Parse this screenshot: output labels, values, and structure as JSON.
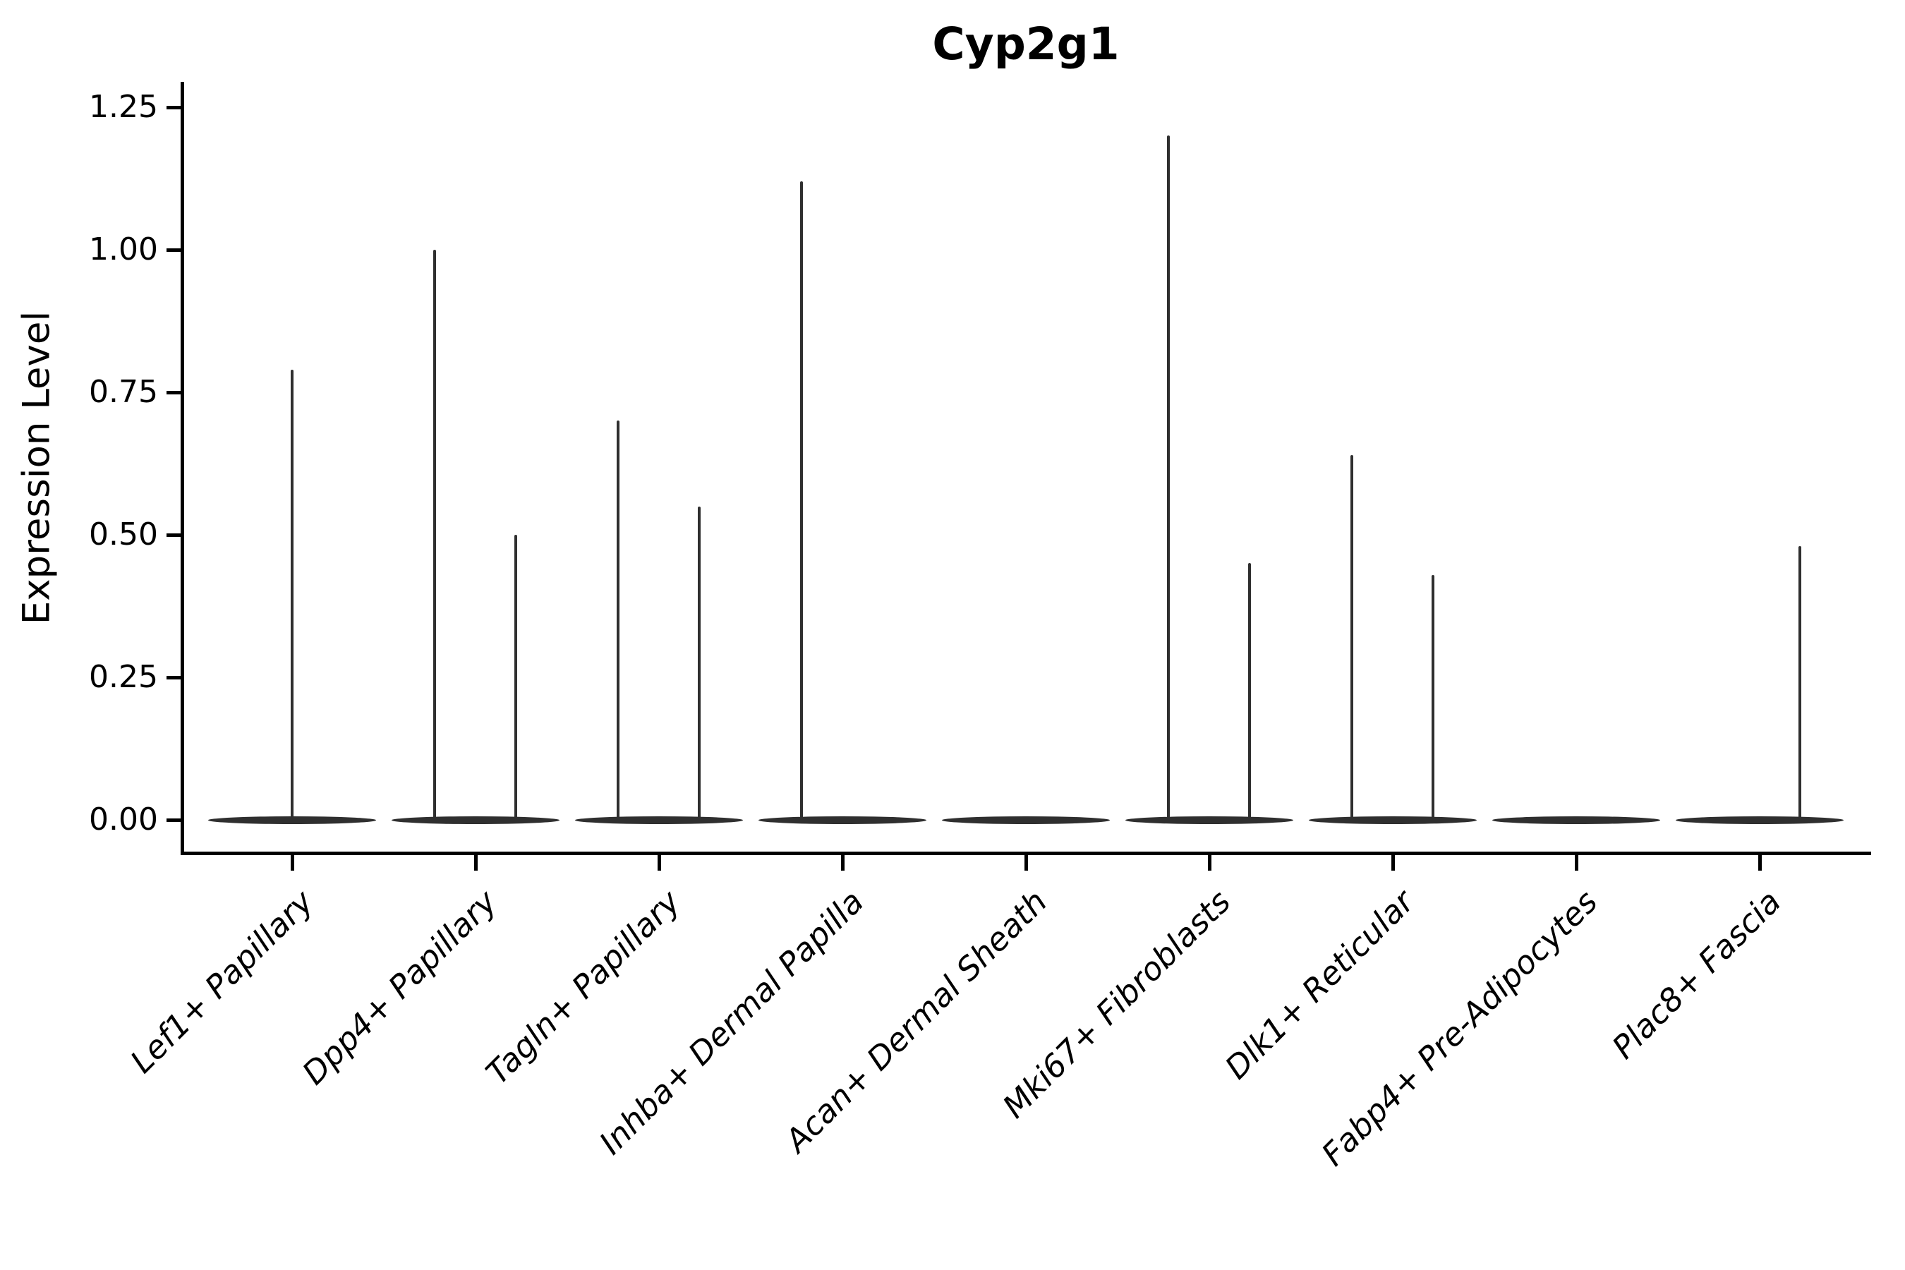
{
  "figure": {
    "background": "#ffffff"
  },
  "chart_data": {
    "type": "violin",
    "title": "Cyp2g1",
    "ylabel": "Expression Level",
    "xlabel": "",
    "ylim": [
      0,
      1.25
    ],
    "yticks": [
      0.0,
      0.25,
      0.5,
      0.75,
      1.0,
      1.25
    ],
    "ytick_labels": [
      "0.00",
      "0.25",
      "0.50",
      "0.75",
      "1.00",
      "1.25"
    ],
    "grid": false,
    "legend": "none",
    "violin_color": "#2f2f2f",
    "axis_color": "#000000",
    "text_color": "#000000",
    "x_label_rotation_deg": 45,
    "categories": [
      {
        "label": "Lef1+ Papillary",
        "spikes": [
          {
            "position": "center",
            "value": 0.79
          }
        ]
      },
      {
        "label": "Dpp4+ Papillary",
        "spikes": [
          {
            "position": "left",
            "value": 1.0
          },
          {
            "position": "right",
            "value": 0.5
          }
        ]
      },
      {
        "label": "Tagln+ Papillary",
        "spikes": [
          {
            "position": "left",
            "value": 0.7
          },
          {
            "position": "right",
            "value": 0.55
          }
        ]
      },
      {
        "label": "Inhba+ Dermal Papilla",
        "spikes": [
          {
            "position": "left",
            "value": 1.12
          }
        ]
      },
      {
        "label": "Acan+ Dermal Sheath",
        "spikes": []
      },
      {
        "label": "Mki67+ Fibroblasts",
        "spikes": [
          {
            "position": "left",
            "value": 1.2
          },
          {
            "position": "right",
            "value": 0.45
          }
        ]
      },
      {
        "label": "Dlk1+ Reticular",
        "spikes": [
          {
            "position": "left",
            "value": 0.64
          },
          {
            "position": "right",
            "value": 0.43
          }
        ]
      },
      {
        "label": "Fabp4+ Pre-Adipocytes",
        "spikes": []
      },
      {
        "label": "Plac8+ Fascia",
        "spikes": [
          {
            "position": "right",
            "value": 0.48
          }
        ]
      }
    ]
  }
}
